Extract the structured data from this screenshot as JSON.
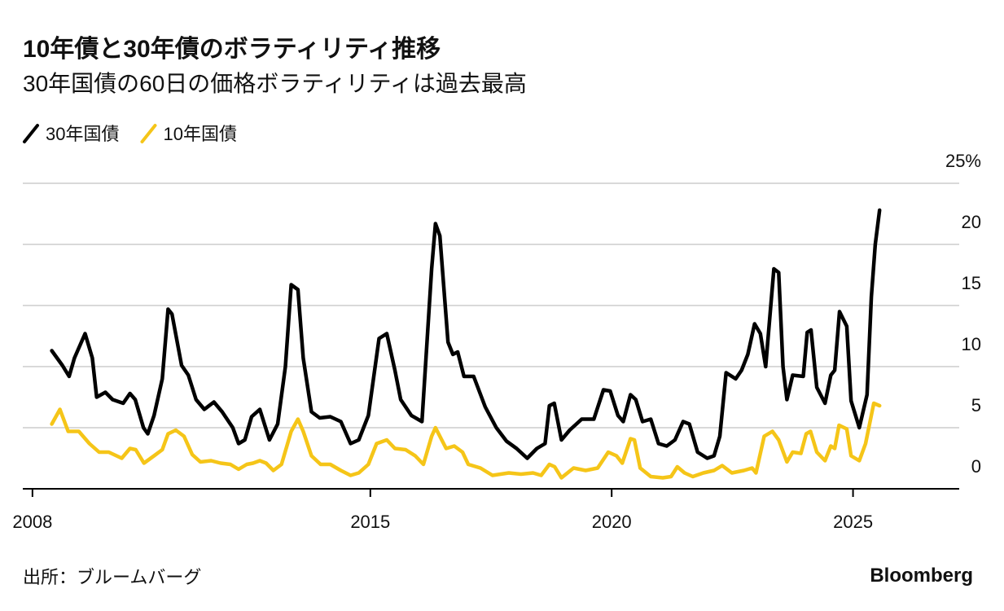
{
  "chart_data": {
    "type": "line",
    "title": "10年債と30年債のボラティリティ推移",
    "subtitle": "30年国債の60日の価格ボラティリティは過去最高",
    "source": "出所：ブルームバーグ",
    "brand": "Bloomberg",
    "xlim": [
      2007.8,
      2027.2
    ],
    "xticks": [
      2008,
      2015,
      2020,
      2025
    ],
    "ylim": [
      0,
      25
    ],
    "yticks": [
      0,
      5,
      10,
      15,
      20,
      {
        "value": 25,
        "label": "25%"
      }
    ],
    "grid": true,
    "series": [
      {
        "name": "30年国債",
        "color": "#000000",
        "x": [
          2008.4,
          2008.62,
          2008.76,
          2008.87,
          2009.09,
          2009.24,
          2009.33,
          2009.51,
          2009.66,
          2009.88,
          2010.02,
          2010.13,
          2010.3,
          2010.39,
          2010.52,
          2010.69,
          2010.81,
          2010.89,
          2011.09,
          2011.23,
          2011.39,
          2011.56,
          2011.76,
          2011.93,
          2012.15,
          2012.27,
          2012.4,
          2012.54,
          2012.71,
          2012.91,
          2013.08,
          2013.24,
          2013.36,
          2013.5,
          2013.61,
          2013.78,
          2013.95,
          2014.17,
          2014.39,
          2014.59,
          2014.76,
          2014.96,
          2015.18,
          2015.34,
          2015.51,
          2015.63,
          2015.85,
          2016.07,
          2016.27,
          2016.35,
          2016.44,
          2016.61,
          2016.71,
          2016.81,
          2016.94,
          2017.14,
          2017.38,
          2017.61,
          2017.82,
          2018.03,
          2018.25,
          2018.45,
          2018.62,
          2018.71,
          2018.81,
          2018.96,
          2019.13,
          2019.38,
          2019.63,
          2019.83,
          2019.97,
          2020.13,
          2020.24,
          2020.39,
          2020.5,
          2020.64,
          2020.81,
          2020.97,
          2021.14,
          2021.31,
          2021.48,
          2021.61,
          2021.78,
          2021.98,
          2022.12,
          2022.24,
          2022.37,
          2022.57,
          2022.69,
          2022.82,
          2022.96,
          2023.08,
          2023.19,
          2023.36,
          2023.46,
          2023.55,
          2023.63,
          2023.75,
          2023.97,
          2024.05,
          2024.13,
          2024.25,
          2024.42,
          2024.54,
          2024.62,
          2024.72,
          2024.87,
          2024.96,
          2025.13,
          2025.29,
          2025.38,
          2025.46,
          2025.55
        ],
        "values": [
          11.3,
          10.1,
          9.2,
          10.7,
          12.7,
          10.7,
          7.5,
          7.9,
          7.3,
          7.0,
          7.8,
          7.3,
          5.0,
          4.5,
          6.0,
          9.0,
          14.7,
          14.3,
          10.1,
          9.3,
          7.3,
          6.5,
          7.1,
          6.3,
          5.0,
          3.7,
          4.0,
          5.9,
          6.5,
          4.0,
          5.3,
          10.0,
          16.7,
          16.3,
          10.7,
          6.3,
          5.8,
          5.9,
          5.5,
          3.7,
          4.0,
          6.0,
          12.3,
          12.7,
          9.7,
          7.3,
          6.0,
          5.5,
          18.0,
          21.7,
          20.7,
          12.0,
          11.0,
          11.2,
          9.2,
          9.2,
          6.7,
          5.0,
          3.9,
          3.3,
          2.5,
          3.3,
          3.7,
          6.8,
          7.0,
          4.0,
          4.8,
          5.7,
          5.7,
          8.1,
          8.0,
          6.0,
          5.5,
          7.7,
          7.3,
          5.5,
          5.7,
          3.7,
          3.5,
          4.0,
          5.5,
          5.3,
          3.0,
          2.5,
          2.7,
          4.3,
          9.5,
          9.0,
          9.7,
          11.0,
          13.5,
          12.7,
          10.0,
          18.0,
          17.7,
          10.0,
          7.3,
          9.3,
          9.2,
          12.8,
          13.0,
          8.3,
          7.0,
          9.3,
          9.7,
          14.5,
          13.3,
          7.2,
          5.0,
          7.7,
          15.7,
          20.0,
          22.8
        ]
      },
      {
        "name": "10年国債",
        "color": "#f5c518",
        "x": [
          2008.4,
          2008.57,
          2008.74,
          2008.96,
          2009.18,
          2009.38,
          2009.58,
          2009.85,
          2010.02,
          2010.14,
          2010.31,
          2010.52,
          2010.69,
          2010.81,
          2010.97,
          2011.14,
          2011.31,
          2011.48,
          2011.7,
          2011.9,
          2012.1,
          2012.27,
          2012.44,
          2012.57,
          2012.71,
          2012.84,
          2012.99,
          2013.16,
          2013.36,
          2013.5,
          2013.61,
          2013.78,
          2013.97,
          2014.17,
          2014.39,
          2014.59,
          2014.76,
          2014.96,
          2015.13,
          2015.34,
          2015.51,
          2015.73,
          2015.93,
          2016.1,
          2016.27,
          2016.35,
          2016.57,
          2016.74,
          2016.91,
          2017.03,
          2017.28,
          2017.53,
          2017.87,
          2018.12,
          2018.37,
          2018.54,
          2018.71,
          2018.82,
          2018.96,
          2019.21,
          2019.46,
          2019.71,
          2019.93,
          2020.1,
          2020.22,
          2020.39,
          2020.47,
          2020.59,
          2020.81,
          2021.06,
          2021.23,
          2021.36,
          2021.51,
          2021.68,
          2021.9,
          2022.12,
          2022.29,
          2022.49,
          2022.74,
          2022.91,
          2022.99,
          2023.16,
          2023.33,
          2023.46,
          2023.63,
          2023.75,
          2023.92,
          2024.03,
          2024.12,
          2024.25,
          2024.42,
          2024.54,
          2024.62,
          2024.71,
          2024.87,
          2024.96,
          2025.13,
          2025.26,
          2025.43,
          2025.55
        ],
        "values": [
          5.3,
          6.5,
          4.7,
          4.7,
          3.7,
          3.0,
          3.0,
          2.5,
          3.3,
          3.2,
          2.1,
          2.7,
          3.2,
          4.5,
          4.8,
          4.3,
          2.8,
          2.2,
          2.3,
          2.1,
          2.0,
          1.6,
          2.0,
          2.1,
          2.3,
          2.1,
          1.5,
          2.0,
          4.7,
          5.7,
          4.7,
          2.7,
          2.0,
          2.0,
          1.5,
          1.1,
          1.3,
          2.0,
          3.7,
          4.0,
          3.3,
          3.2,
          2.7,
          2.0,
          4.3,
          5.0,
          3.3,
          3.5,
          3.0,
          2.0,
          1.7,
          1.1,
          1.3,
          1.2,
          1.3,
          1.1,
          2.0,
          1.8,
          0.9,
          1.7,
          1.5,
          1.7,
          3.0,
          2.7,
          2.1,
          4.1,
          4.0,
          1.7,
          1.0,
          0.9,
          1.0,
          1.8,
          1.3,
          1.0,
          1.3,
          1.5,
          1.9,
          1.3,
          1.5,
          1.7,
          1.3,
          4.3,
          4.7,
          4.0,
          2.2,
          3.0,
          2.9,
          4.5,
          4.7,
          3.0,
          2.3,
          3.5,
          3.3,
          5.2,
          4.9,
          2.7,
          2.3,
          3.7,
          7.0,
          6.8
        ]
      }
    ]
  }
}
